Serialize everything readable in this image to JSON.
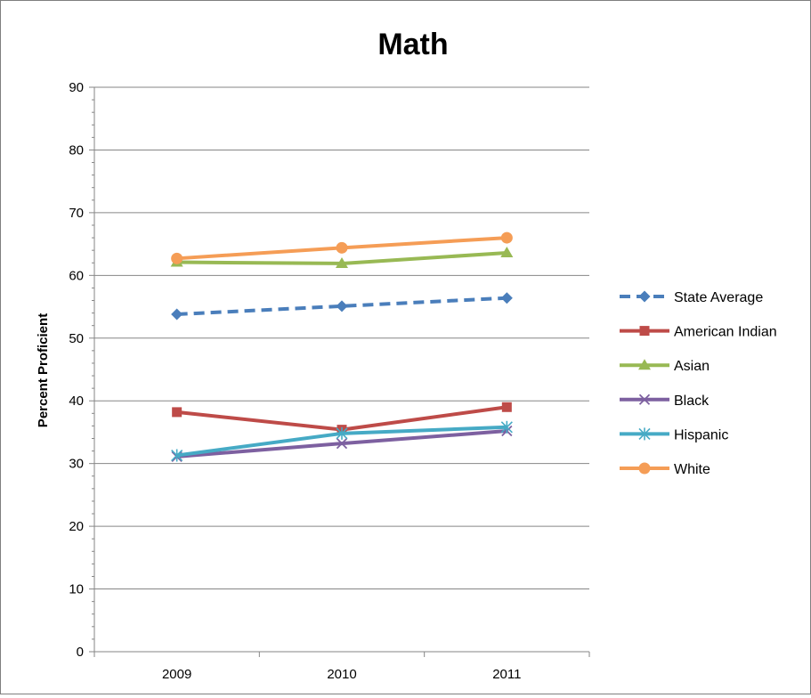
{
  "chart_data": {
    "type": "line",
    "title": "Math",
    "xlabel": "",
    "ylabel": "Percent Proficient",
    "categories": [
      "2009",
      "2010",
      "2011"
    ],
    "ylim": [
      0,
      90
    ],
    "yticks": [
      0,
      10,
      20,
      30,
      40,
      50,
      60,
      70,
      80,
      90
    ],
    "grid": "horizontal major gridlines",
    "legend_position": "right",
    "series": [
      {
        "name": "State Average",
        "values": [
          53.8,
          55.1,
          56.4
        ],
        "color": "#4a7ebb",
        "marker": "diamond",
        "dashed": true
      },
      {
        "name": "American Indian",
        "values": [
          38.2,
          35.4,
          39.0
        ],
        "color": "#be4b48",
        "marker": "square",
        "dashed": false
      },
      {
        "name": "Asian",
        "values": [
          62.1,
          61.9,
          63.6
        ],
        "color": "#98b954",
        "marker": "triangle",
        "dashed": false
      },
      {
        "name": "Black",
        "values": [
          31.1,
          33.2,
          35.2
        ],
        "color": "#7d60a0",
        "marker": "x",
        "dashed": false
      },
      {
        "name": "Hispanic",
        "values": [
          31.3,
          34.8,
          35.8
        ],
        "color": "#46aac5",
        "marker": "star",
        "dashed": false
      },
      {
        "name": "White",
        "values": [
          62.7,
          64.4,
          66.0
        ],
        "color": "#f59d56",
        "marker": "circle",
        "dashed": false
      }
    ]
  }
}
